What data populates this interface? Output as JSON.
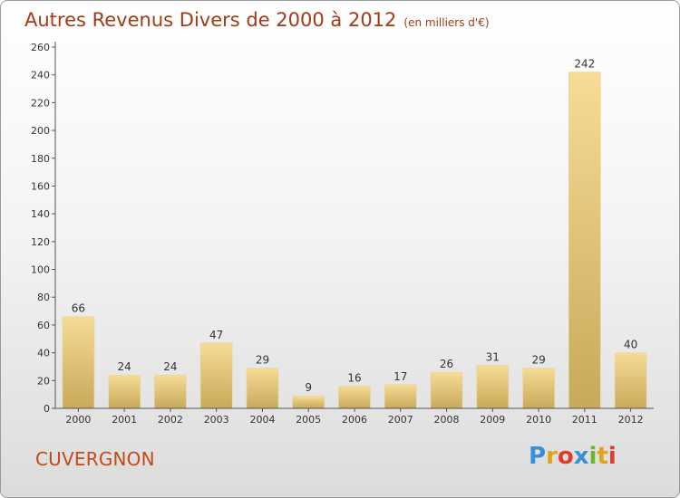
{
  "header": {
    "title": "Autres Revenus Divers de 2000 à 2012",
    "unit": "(en milliers d'€)"
  },
  "footer": {
    "commune": "CUVERGNON",
    "logo": {
      "letters": [
        "P",
        "r",
        "o",
        "x",
        "i",
        "t",
        "i"
      ],
      "colors": [
        "#3a8fd6",
        "#e1a21c",
        "#e23a2c",
        "#3a8fd6",
        "#6cb52d",
        "#e1a21c",
        "#e23a2c"
      ]
    }
  },
  "colors": {
    "title": "#a33a14",
    "commune": "#c04a18",
    "bar_light": "#f6dc96",
    "bar_dark": "#c9a95a",
    "axis": "#555555"
  },
  "chart_data": {
    "type": "bar",
    "categories": [
      "2000",
      "2001",
      "2002",
      "2003",
      "2004",
      "2005",
      "2006",
      "2007",
      "2008",
      "2009",
      "2010",
      "2011",
      "2012"
    ],
    "values": [
      66,
      24,
      24,
      47,
      29,
      9,
      16,
      17,
      26,
      31,
      29,
      242,
      40
    ],
    "ylim": [
      0,
      260
    ],
    "yticks": [
      0,
      20,
      40,
      60,
      80,
      100,
      120,
      140,
      160,
      180,
      200,
      220,
      240,
      260
    ],
    "grid": false
  }
}
